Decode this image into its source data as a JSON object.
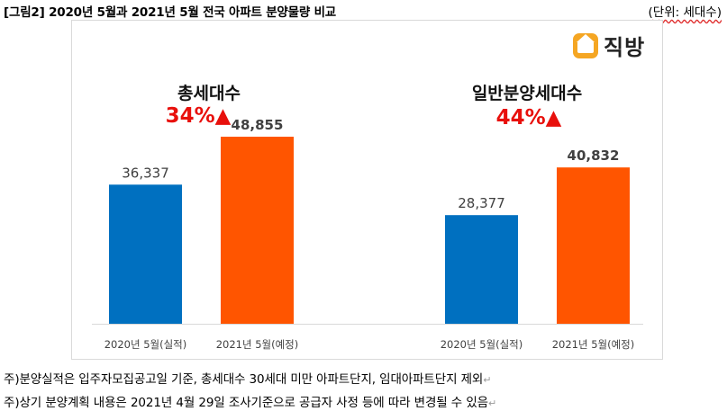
{
  "caption": "[그림2] 2020년 5월과 2021년 5월 전국 아파트 분양물량 비교",
  "unit_label": "(단위: 세대수)",
  "logo": {
    "text": "직방",
    "icon": "zigbang-house-icon",
    "color": "#f5a623"
  },
  "colors": {
    "blue": "#0070c0",
    "orange": "#ff5500",
    "up": "#e8100c"
  },
  "chart_data": {
    "type": "bar",
    "groups": [
      {
        "title": "총세대수",
        "change": "34%▲",
        "categories": [
          "2020년 5월(실적)",
          "2021년 5월(예정)"
        ],
        "values": [
          36337,
          48855
        ],
        "labels": [
          "36,337",
          "48,855"
        ]
      },
      {
        "title": "일반분양세대수",
        "change": "44%▲",
        "categories": [
          "2020년 5월(실적)",
          "2021년 5월(예정)"
        ],
        "values": [
          28377,
          40832
        ],
        "labels": [
          "28,377",
          "40,832"
        ]
      }
    ],
    "ylim": [
      0,
      70000
    ],
    "grid": false
  },
  "notes": [
    "주)분양실적은 입주자모집공고일 기준, 총세대수 30세대 미만 아파트단지, 임대아파트단지 제외",
    "주)상기 분양계획 내용은 2021년 4월 29일 조사기준으로 공급자 사정 등에 따라 변경될 수 있음"
  ]
}
